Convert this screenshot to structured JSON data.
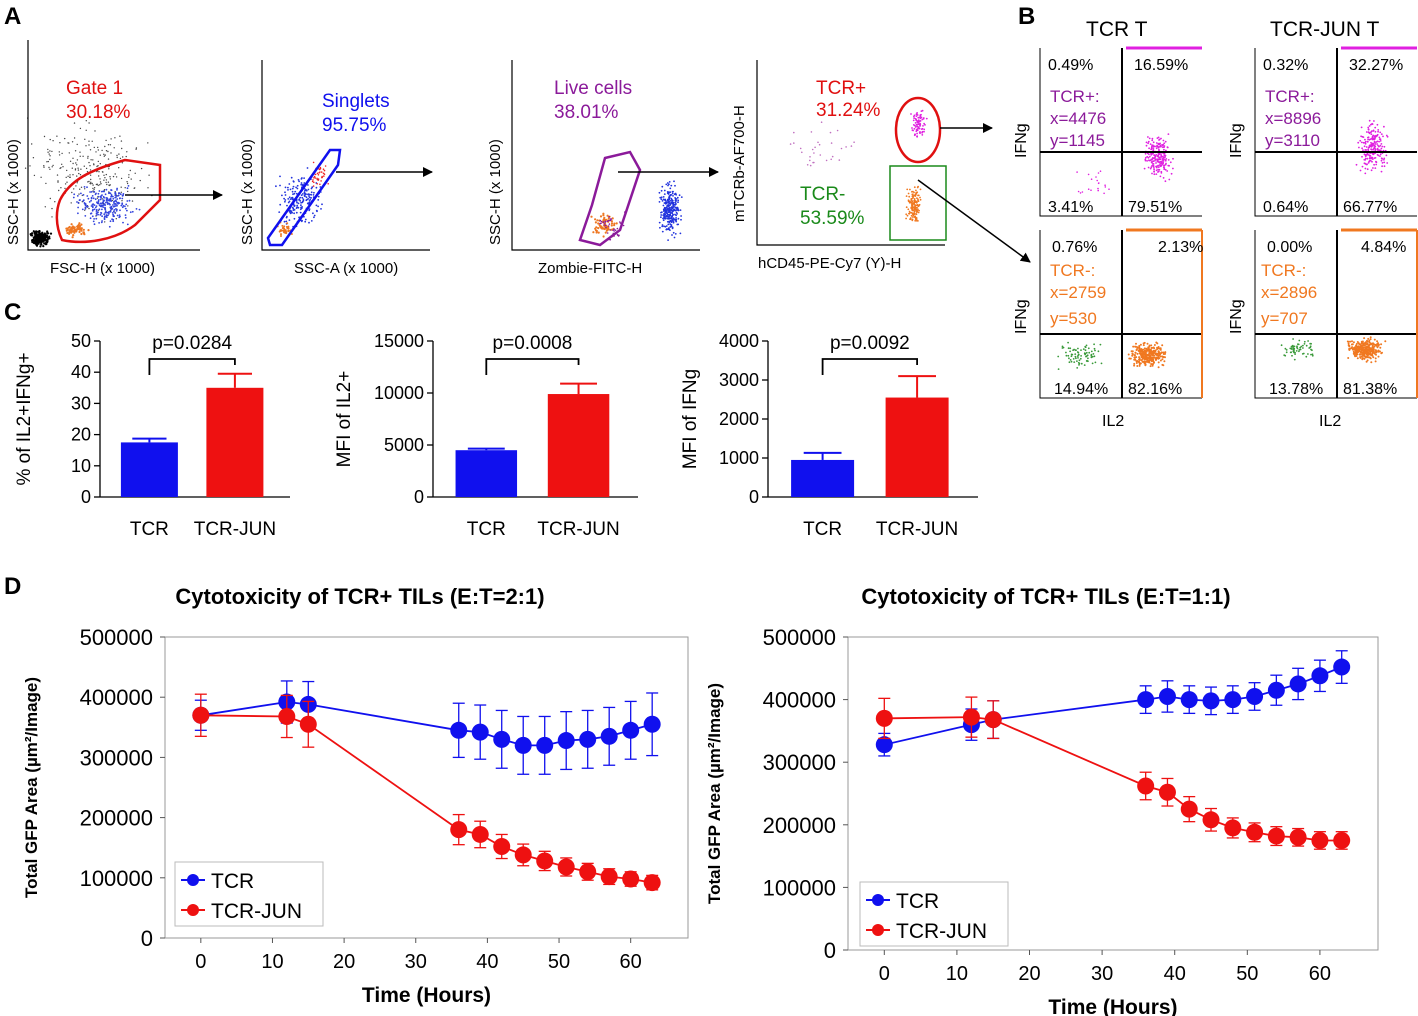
{
  "colors": {
    "tcr": "#1010ee",
    "jun": "#ee1111",
    "purple": "#8b1a9a",
    "green": "#1a8a1a",
    "orange": "#f07820",
    "magenta": "#e020e0"
  },
  "panel_letters": {
    "a": "A",
    "b": "B",
    "c": "C",
    "d": "D"
  },
  "panel_a": {
    "plots": [
      {
        "xlabel": "FSC-H (x 1000)",
        "ylabel": "SSC-H (x 1000)",
        "gate_name": "Gate 1",
        "gate_pct": "30.18%"
      },
      {
        "xlabel": "SSC-A (x 1000)",
        "ylabel": "SSC-H (x 1000)",
        "gate_name": "Singlets",
        "gate_pct": "95.75%"
      },
      {
        "xlabel": "Zombie-FITC-H",
        "ylabel": "SSC-H (x 1000)",
        "gate_name": "Live cells",
        "gate_pct": "38.01%"
      },
      {
        "xlabel": "hCD45-PE-Cy7 (Y)-H",
        "ylabel": "mTCRb-AF700-H",
        "gate_name": "TCR+",
        "gate_pct": "31.24%",
        "gate2_name": "TCR-",
        "gate2_pct": "53.59%"
      }
    ]
  },
  "panel_b": {
    "col_titles": [
      "TCR T",
      "TCR-JUN T"
    ],
    "ylabel": "IFNg",
    "xlabel": "IL2",
    "quads": [
      {
        "q": [
          "0.49%",
          "16.59%",
          "3.41%",
          "79.51%"
        ],
        "label": "TCR+:",
        "x": "x=4476",
        "y": "y=1145"
      },
      {
        "q": [
          "0.32%",
          "32.27%",
          "0.64%",
          "66.77%"
        ],
        "label": "TCR+:",
        "x": "x=8896",
        "y": "y=3110"
      },
      {
        "q": [
          "0.76%",
          "2.13%",
          "14.94%",
          "82.16%"
        ],
        "label": "TCR-:",
        "x": "x=2759",
        "y": "y=530"
      },
      {
        "q": [
          "0.00%",
          "4.84%",
          "13.78%",
          "81.38%"
        ],
        "label": "TCR-:",
        "x": "x=2896",
        "y": "y=707"
      }
    ]
  },
  "chart_data": [
    {
      "type": "bar",
      "title": "",
      "categories": [
        "TCR",
        "TCR-JUN"
      ],
      "values": [
        17.5,
        35
      ],
      "errors": [
        1.2,
        4.5
      ],
      "ylabel": "% of IL2+IFNg+",
      "ylim": [
        0,
        50
      ],
      "ticks": [
        0,
        10,
        20,
        30,
        40,
        50
      ],
      "pvalue": "p=0.0284"
    },
    {
      "type": "bar",
      "title": "",
      "categories": [
        "TCR",
        "TCR-JUN"
      ],
      "values": [
        4500,
        9900
      ],
      "errors": [
        150,
        1000
      ],
      "ylabel": "MFI of IL2+",
      "ylim": [
        0,
        15000
      ],
      "ticks": [
        0,
        5000,
        10000,
        15000
      ],
      "pvalue": "p=0.0008"
    },
    {
      "type": "bar",
      "title": "",
      "categories": [
        "TCR",
        "TCR-JUN"
      ],
      "values": [
        950,
        2550
      ],
      "errors": [
        180,
        550
      ],
      "ylabel": "MFI of IFNg",
      "ylim": [
        0,
        4000
      ],
      "ticks": [
        0,
        1000,
        2000,
        3000,
        4000
      ],
      "pvalue": "p=0.0092"
    },
    {
      "type": "line",
      "title": "Cytotoxicity of TCR+ TILs (E:T=2:1)",
      "xlabel": "Time (Hours)",
      "ylabel": "Total GFP Area (µm²/Image)",
      "xlim": [
        -5,
        68
      ],
      "ylim": [
        0,
        500000
      ],
      "xticks": [
        0,
        10,
        20,
        30,
        40,
        50,
        60
      ],
      "yticks": [
        0,
        100000,
        200000,
        300000,
        400000,
        500000
      ],
      "series": [
        {
          "name": "TCR",
          "x": [
            0,
            12,
            15,
            36,
            39,
            42,
            45,
            48,
            51,
            54,
            57,
            60,
            63
          ],
          "y": [
            370000,
            392000,
            388000,
            345000,
            342000,
            330000,
            320000,
            320000,
            328000,
            330000,
            335000,
            345000,
            355000
          ],
          "err": [
            25000,
            35000,
            38000,
            45000,
            45000,
            48000,
            48000,
            48000,
            48000,
            48000,
            48000,
            48000,
            52000
          ]
        },
        {
          "name": "TCR-JUN",
          "x": [
            0,
            12,
            15,
            36,
            39,
            42,
            45,
            48,
            51,
            54,
            57,
            60,
            63
          ],
          "y": [
            370000,
            368000,
            355000,
            180000,
            172000,
            152000,
            138000,
            128000,
            118000,
            110000,
            102000,
            98000,
            92000
          ],
          "err": [
            35000,
            35000,
            38000,
            25000,
            22000,
            20000,
            18000,
            16000,
            15000,
            14000,
            13000,
            12000,
            12000
          ]
        }
      ]
    },
    {
      "type": "line",
      "title": "Cytotoxicity of TCR+ TILs (E:T=1:1)",
      "xlabel": "Time (Hours)",
      "ylabel": "Total GFP Area (µm²/Image)",
      "xlim": [
        -5,
        68
      ],
      "ylim": [
        0,
        500000
      ],
      "xticks": [
        0,
        10,
        20,
        30,
        40,
        50,
        60
      ],
      "yticks": [
        0,
        100000,
        200000,
        300000,
        400000,
        500000
      ],
      "series": [
        {
          "name": "TCR",
          "x": [
            0,
            12,
            15,
            36,
            39,
            42,
            45,
            48,
            51,
            54,
            57,
            60,
            63
          ],
          "y": [
            328000,
            360000,
            368000,
            400000,
            405000,
            400000,
            398000,
            400000,
            405000,
            415000,
            425000,
            438000,
            452000
          ],
          "err": [
            18000,
            25000,
            30000,
            22000,
            25000,
            22000,
            22000,
            22000,
            22000,
            24000,
            25000,
            25000,
            26000
          ]
        },
        {
          "name": "TCR-JUN",
          "x": [
            0,
            12,
            15,
            36,
            39,
            42,
            45,
            48,
            51,
            54,
            57,
            60,
            63
          ],
          "y": [
            370000,
            372000,
            368000,
            262000,
            252000,
            225000,
            208000,
            195000,
            188000,
            182000,
            180000,
            175000,
            175000
          ],
          "err": [
            32000,
            32000,
            30000,
            22000,
            22000,
            20000,
            18000,
            16000,
            15000,
            15000,
            14000,
            14000,
            14000
          ]
        }
      ]
    }
  ]
}
